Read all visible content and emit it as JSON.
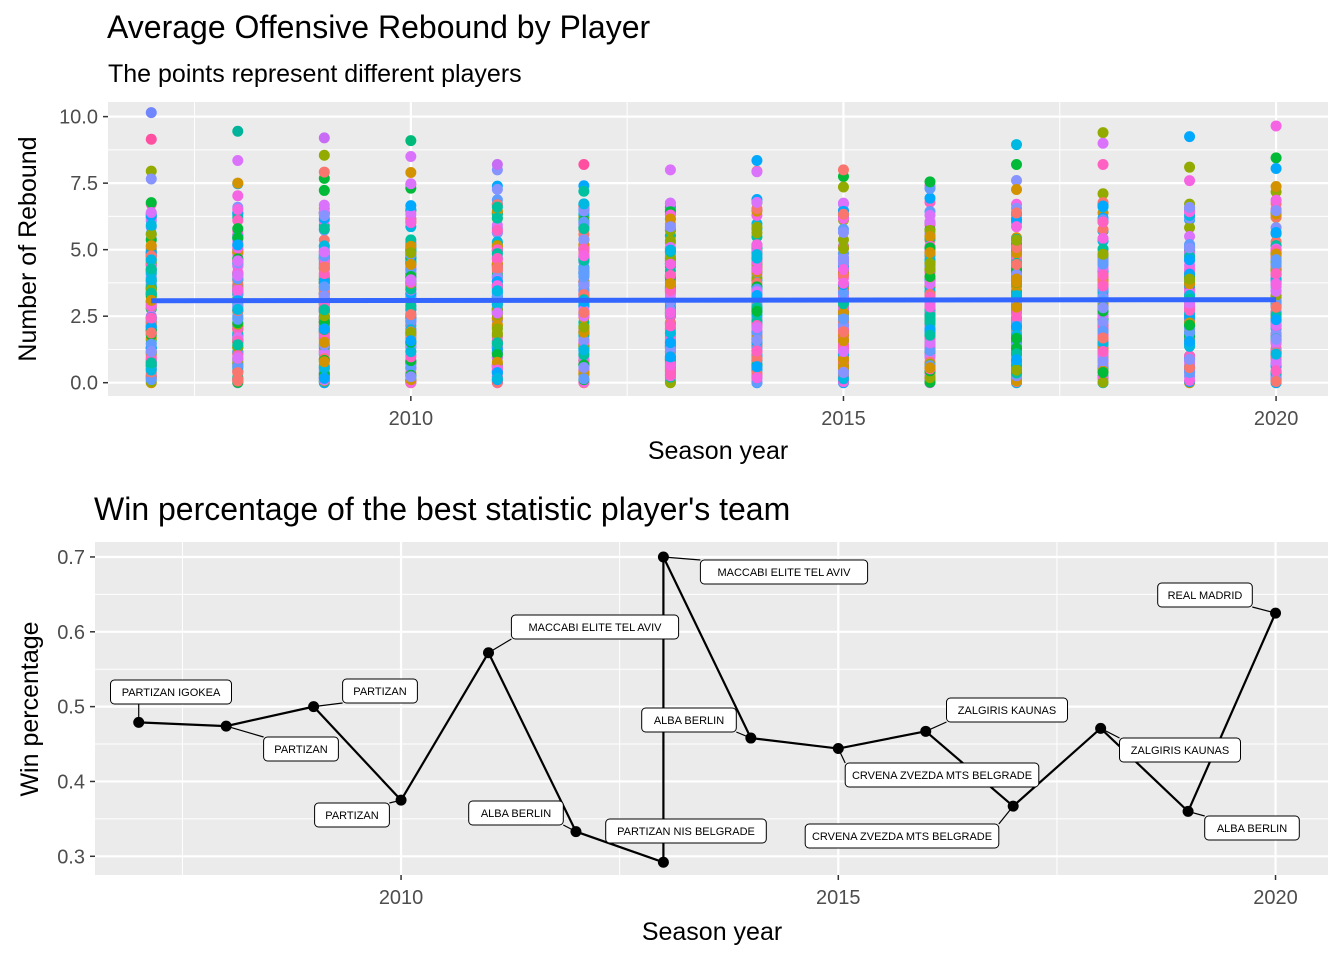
{
  "chart_data": [
    {
      "type": "scatter",
      "title": "Average Offensive Rebound by Player",
      "subtitle": "The points represent different players",
      "xlabel": "Season year",
      "ylabel": "Number of Rebound",
      "xlim": [
        2006.5,
        2020.6
      ],
      "ylim": [
        -0.5,
        10.55
      ],
      "x_ticks": [
        2010,
        2015,
        2020
      ],
      "y_ticks": [
        0.0,
        2.5,
        5.0,
        7.5,
        10.0
      ],
      "x_tick_labels": [
        "2010",
        "2015",
        "2020"
      ],
      "y_tick_labels": [
        "0.0",
        "2.5",
        "5.0",
        "7.5",
        "10.0"
      ],
      "grid": true,
      "point_colors": [
        "#F8766D",
        "#FF61C3",
        "#DB72FB",
        "#619CFF",
        "#00B9E3",
        "#00BA38",
        "#00C19F",
        "#93AA00",
        "#D39200",
        "#00A9FF",
        "#F564E3",
        "#8794FF"
      ],
      "seasons": [
        2007,
        2008,
        2009,
        2010,
        2011,
        2012,
        2013,
        2014,
        2015,
        2016,
        2017,
        2018,
        2019,
        2020
      ],
      "top_points": [
        {
          "x": 2007,
          "y": 10.15,
          "color": "#6F86FF"
        },
        {
          "x": 2007,
          "y": 9.15,
          "color": "#FF4FA1"
        },
        {
          "x": 2008,
          "y": 9.45,
          "color": "#00B39A"
        },
        {
          "x": 2009,
          "y": 9.2,
          "color": "#C86CF5"
        },
        {
          "x": 2010,
          "y": 9.1,
          "color": "#00BA7A"
        },
        {
          "x": 2010,
          "y": 8.5,
          "color": "#DB72FB"
        },
        {
          "x": 2011,
          "y": 8.2,
          "color": "#C86CF5"
        },
        {
          "x": 2012,
          "y": 8.2,
          "color": "#FF4FA1"
        },
        {
          "x": 2013,
          "y": 8.0,
          "color": "#DB72FB"
        },
        {
          "x": 2014,
          "y": 8.35,
          "color": "#00A9FF"
        },
        {
          "x": 2015,
          "y": 8.0,
          "color": "#F8766D"
        },
        {
          "x": 2016,
          "y": 7.55,
          "color": "#00BA38"
        },
        {
          "x": 2017,
          "y": 8.95,
          "color": "#00B9E3"
        },
        {
          "x": 2017,
          "y": 8.2,
          "color": "#00BA38"
        },
        {
          "x": 2018,
          "y": 9.4,
          "color": "#93AA00"
        },
        {
          "x": 2018,
          "y": 9.0,
          "color": "#DB72FB"
        },
        {
          "x": 2018,
          "y": 8.2,
          "color": "#FF61C3"
        },
        {
          "x": 2019,
          "y": 9.25,
          "color": "#00A9FF"
        },
        {
          "x": 2020,
          "y": 9.65,
          "color": "#F564E3"
        }
      ],
      "column_max": [
        7.95,
        8.35,
        8.55,
        7.9,
        8.0,
        7.4,
        6.75,
        7.95,
        7.75,
        7.4,
        7.6,
        7.1,
        8.1,
        8.45
      ],
      "trend_line": {
        "name": "average",
        "color": "#3366FF",
        "x": [
          2007,
          2020
        ],
        "y": [
          3.08,
          3.12
        ]
      }
    },
    {
      "type": "line",
      "title": "Win percentage of the best statistic player's team",
      "xlabel": "Season year",
      "ylabel": "Win percentage",
      "xlim": [
        2006.5,
        2020.6
      ],
      "ylim": [
        0.275,
        0.72
      ],
      "x_ticks": [
        2010,
        2015,
        2020
      ],
      "y_ticks": [
        0.3,
        0.4,
        0.5,
        0.6,
        0.7
      ],
      "x_tick_labels": [
        "2010",
        "2015",
        "2020"
      ],
      "y_tick_labels": [
        "0.3",
        "0.4",
        "0.5",
        "0.6",
        "0.7"
      ],
      "grid": true,
      "points": [
        {
          "x": 2007,
          "y": 0.479,
          "label": "PARTIZAN IGOKEA"
        },
        {
          "x": 2008,
          "y": 0.474,
          "label": "PARTIZAN"
        },
        {
          "x": 2009,
          "y": 0.5,
          "label": "PARTIZAN"
        },
        {
          "x": 2010,
          "y": 0.375,
          "label": "PARTIZAN"
        },
        {
          "x": 2011,
          "y": 0.572,
          "label": "MACCABI ELITE TEL AVIV"
        },
        {
          "x": 2012,
          "y": 0.333,
          "label": "ALBA BERLIN"
        },
        {
          "x": 2013,
          "y": 0.292,
          "label": "PARTIZAN NIS BELGRADE"
        },
        {
          "x": 2013,
          "y": 0.7,
          "label": "MACCABI ELITE TEL AVIV"
        },
        {
          "x": 2014,
          "y": 0.458,
          "label": "ALBA BERLIN"
        },
        {
          "x": 2015,
          "y": 0.444,
          "label": "CRVENA ZVEZDA MTS BELGRADE"
        },
        {
          "x": 2016,
          "y": 0.467,
          "label": "ZALGIRIS KAUNAS"
        },
        {
          "x": 2017,
          "y": 0.367,
          "label": "CRVENA ZVEZDA MTS BELGRADE"
        },
        {
          "x": 2018,
          "y": 0.471,
          "label": "ZALGIRIS KAUNAS"
        },
        {
          "x": 2019,
          "y": 0.36,
          "label": "ALBA BERLIN"
        },
        {
          "x": 2020,
          "y": 0.625,
          "label": "REAL MADRID"
        }
      ]
    }
  ]
}
